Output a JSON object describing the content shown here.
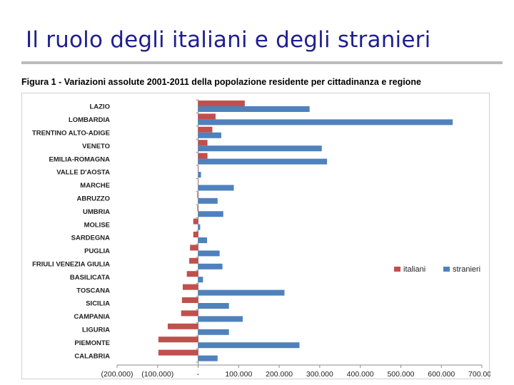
{
  "slide": {
    "title": "Il ruolo degli italiani e degli stranieri"
  },
  "figure": {
    "caption": "Figura 1 - Variazioni assolute 2001-2011 della popolazione residente per cittadinanza e regione"
  },
  "chart_data": {
    "type": "bar",
    "orientation": "horizontal",
    "categories": [
      "LAZIO",
      "LOMBARDIA",
      "TRENTINO ALTO-ADIGE",
      "VENETO",
      "EMILIA-ROMAGNA",
      "VALLE D'AOSTA",
      "MARCHE",
      "ABRUZZO",
      "UMBRIA",
      "MOLISE",
      "SARDEGNA",
      "PUGLIA",
      "FRIULI VENEZIA GIULIA",
      "BASILICATA",
      "TOSCANA",
      "SICILIA",
      "CAMPANIA",
      "LIGURIA",
      "PIEMONTE",
      "CALABRIA"
    ],
    "series": [
      {
        "name": "italiani",
        "color": "#c0504d",
        "values": [
          115000,
          43000,
          35000,
          23000,
          23000,
          1000,
          0,
          -2000,
          -2000,
          -12000,
          -12000,
          -20000,
          -22000,
          -28000,
          -38000,
          -40000,
          -42000,
          -75000,
          -98000,
          -98000
        ]
      },
      {
        "name": "stranieri",
        "color": "#4f81bd",
        "values": [
          275000,
          628000,
          57000,
          305000,
          318000,
          7000,
          88000,
          48000,
          62000,
          5000,
          22000,
          53000,
          60000,
          12000,
          213000,
          76000,
          110000,
          76000,
          250000,
          48000
        ]
      }
    ],
    "x_ticks": [
      "(200.000)",
      "(100.000)",
      "-",
      "100.000",
      "200.000",
      "300.000",
      "400.000",
      "500.000",
      "600.000",
      "700.000"
    ],
    "xlim": [
      -200000,
      700000
    ],
    "legend_position": "right",
    "grid": false
  }
}
